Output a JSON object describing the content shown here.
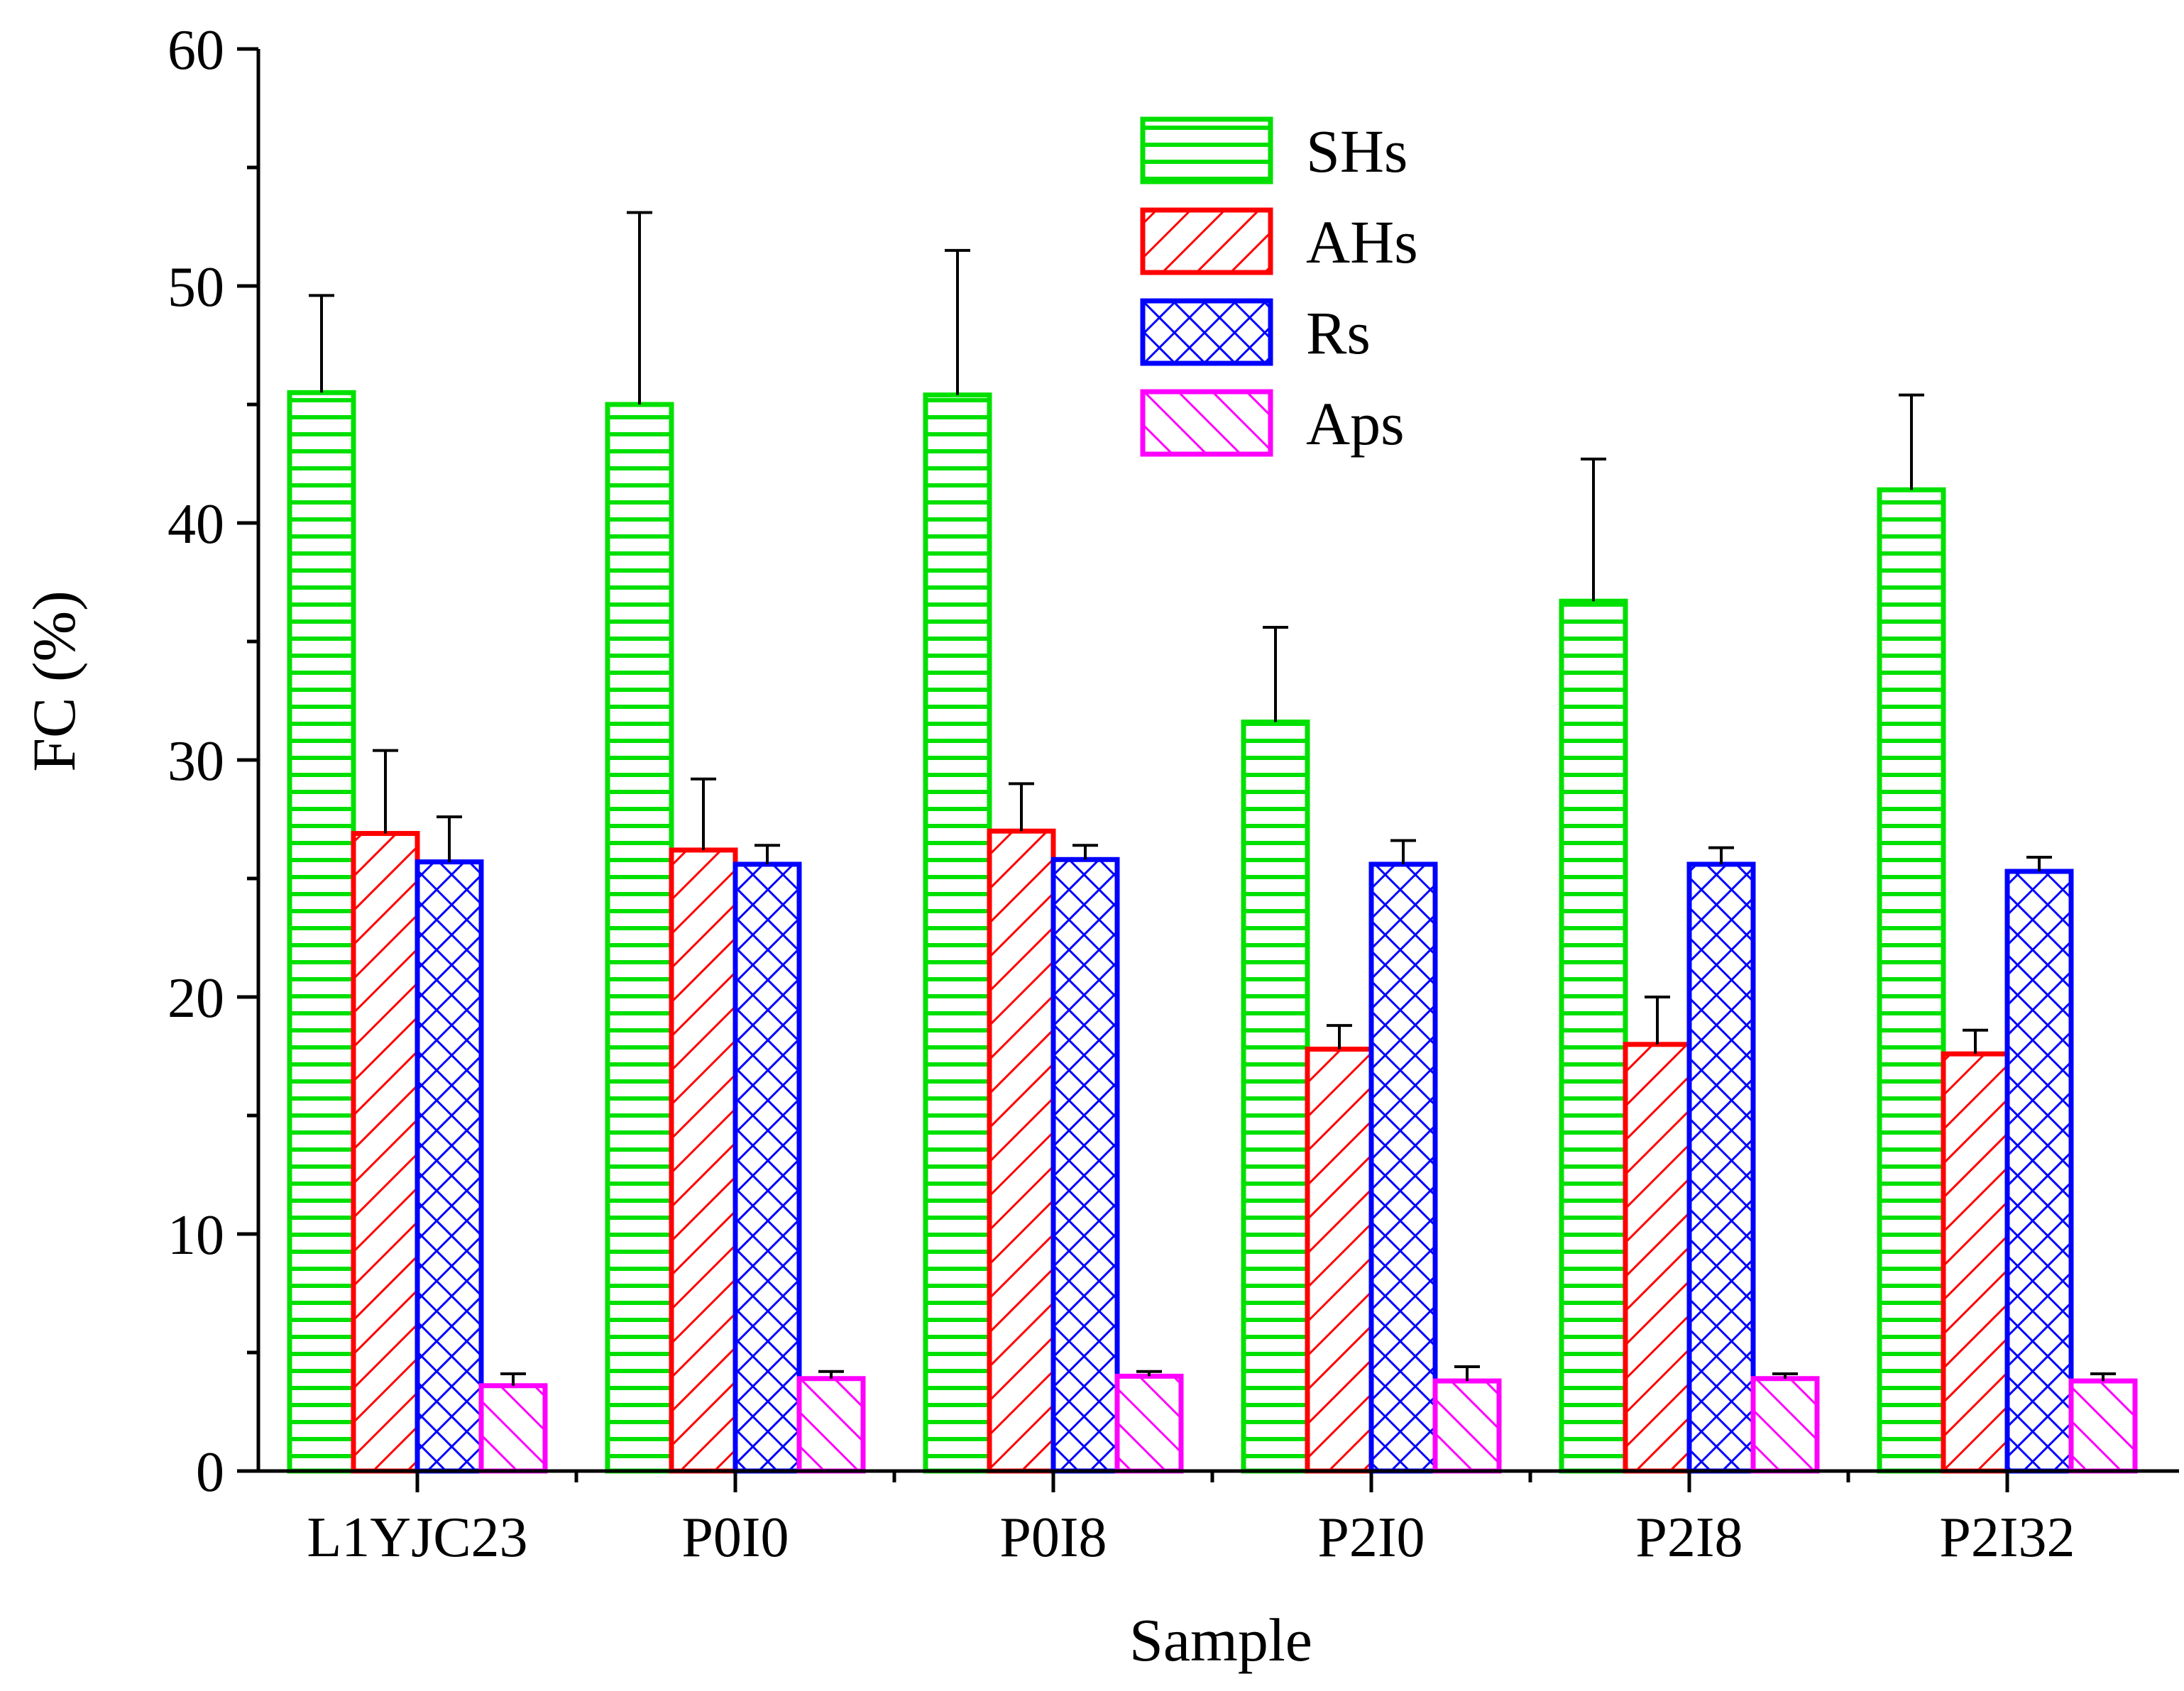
{
  "chart_data": {
    "type": "bar",
    "title": "",
    "xlabel": "Sample",
    "ylabel": "FC (%)",
    "ylim": [
      0,
      60
    ],
    "yticks": [
      "0",
      "10",
      "20",
      "30",
      "40",
      "50",
      "60"
    ],
    "categories": [
      "L1YJC23",
      "P0I0",
      "P0I8",
      "P2I0",
      "P2I8",
      "P2I32"
    ],
    "series": [
      {
        "name": "SHs",
        "color": "#00e000",
        "pattern": "horizontal-lines",
        "values": [
          45.5,
          45.0,
          45.4,
          31.6,
          36.7,
          41.4
        ],
        "errors": [
          4.1,
          8.1,
          6.1,
          4.0,
          6.0,
          4.0
        ]
      },
      {
        "name": "AHs",
        "color": "#ff0000",
        "pattern": "diagonal-lines",
        "values": [
          26.9,
          26.2,
          27.0,
          17.8,
          18.0,
          17.6
        ],
        "errors": [
          3.5,
          3.0,
          2.0,
          1.0,
          2.0,
          1.0
        ]
      },
      {
        "name": "Rs",
        "color": "#0000ff",
        "pattern": "crosshatch",
        "values": [
          25.7,
          25.6,
          25.8,
          25.6,
          25.6,
          25.3
        ],
        "errors": [
          1.9,
          0.8,
          0.6,
          1.0,
          0.7,
          0.6
        ]
      },
      {
        "name": "Aps",
        "color": "#ff00ff",
        "pattern": "back-diagonal-lines",
        "values": [
          3.6,
          3.9,
          4.0,
          3.8,
          3.9,
          3.8
        ],
        "errors": [
          0.5,
          0.3,
          0.2,
          0.6,
          0.2,
          0.3
        ]
      }
    ],
    "legend_position": "top-center",
    "grid": false
  }
}
